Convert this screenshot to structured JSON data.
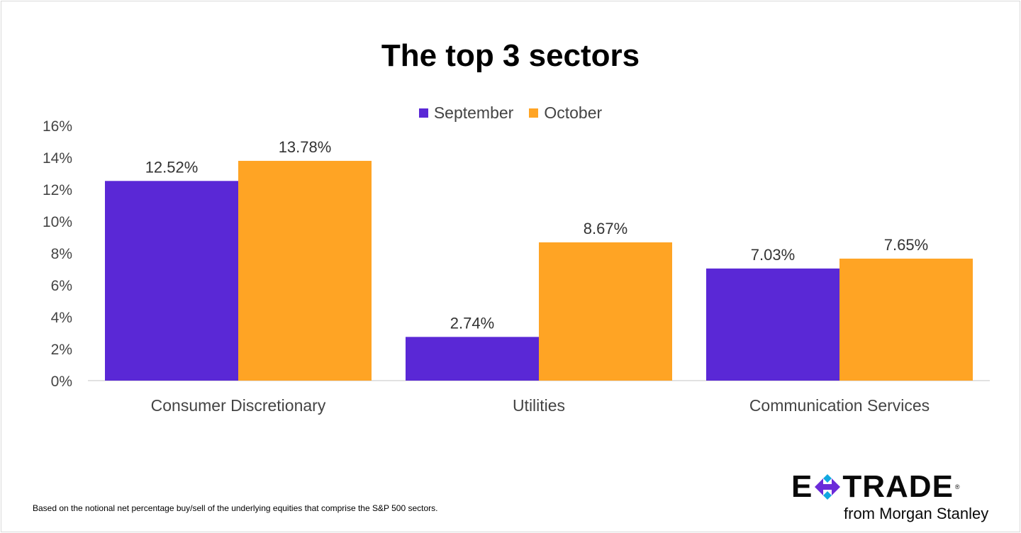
{
  "chart_data": {
    "type": "bar",
    "title": "The top 3 sectors",
    "categories": [
      "Consumer Discretionary",
      "Utilities",
      "Communication Services"
    ],
    "series": [
      {
        "name": "September",
        "color": "#5a28d6",
        "values": [
          12.52,
          2.74,
          7.03
        ],
        "labels": [
          "12.52%",
          "2.74%",
          "7.03%"
        ]
      },
      {
        "name": "October",
        "color": "#ffa424",
        "values": [
          13.78,
          8.67,
          7.65
        ],
        "labels": [
          "13.78%",
          "8.67%",
          "7.65%"
        ]
      }
    ],
    "ylim": [
      0,
      16
    ],
    "yticks": [
      "0%",
      "2%",
      "4%",
      "6%",
      "8%",
      "10%",
      "12%",
      "14%",
      "16%"
    ],
    "xlabel": "",
    "ylabel": "",
    "legend": "top-center",
    "grid": false
  },
  "footnote": "Based on the notional net percentage buy/sell of the underlying equities that comprise the S&P 500 sectors.",
  "logo": {
    "wordmark_left": "E",
    "wordmark_right": "TRADE",
    "tagline": "from Morgan Stanley",
    "icon": "etrade-x-icon"
  }
}
